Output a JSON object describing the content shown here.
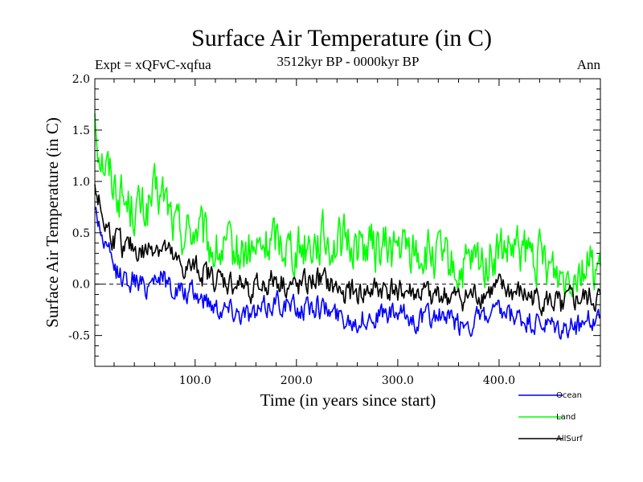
{
  "chart_data": {
    "type": "line",
    "title": "Surface Air Temperature (in C)",
    "subtitle": "3512kyr BP - 0000kyr BP",
    "experiment": "Expt = xQFvC-xqfua",
    "season": "Ann",
    "xlabel": "Time (in years since start)",
    "ylabel": "Surface Air Temperature (in C)",
    "xlim": [
      1,
      500
    ],
    "ylim": [
      -0.8,
      2.0
    ],
    "xticks": [
      100,
      200,
      300,
      400
    ],
    "xtick_labels": [
      "100.0",
      "200.0",
      "300.0",
      "400.0"
    ],
    "yticks": [
      -0.5,
      0.0,
      0.5,
      1.0,
      1.5,
      2.0
    ],
    "ytick_labels": [
      "-0.5",
      "0.0",
      "0.5",
      "1.0",
      "1.5",
      "2.0"
    ],
    "reference_line": 0.0,
    "legend_position": "bottom-right",
    "series": [
      {
        "name": "Ocean",
        "color": "#0000ff",
        "x": [
          1,
          5,
          10,
          20,
          30,
          40,
          50,
          60,
          70,
          80,
          90,
          100,
          120,
          140,
          160,
          180,
          200,
          220,
          240,
          260,
          280,
          300,
          320,
          340,
          360,
          380,
          400,
          420,
          440,
          460,
          480,
          500
        ],
        "values": [
          0.75,
          0.6,
          0.4,
          0.15,
          0.05,
          0.05,
          -0.05,
          0.1,
          0.05,
          -0.05,
          -0.1,
          -0.1,
          -0.2,
          -0.25,
          -0.3,
          -0.15,
          -0.25,
          -0.2,
          -0.3,
          -0.35,
          -0.3,
          -0.3,
          -0.35,
          -0.3,
          -0.4,
          -0.35,
          -0.3,
          -0.35,
          -0.4,
          -0.45,
          -0.4,
          -0.3
        ]
      },
      {
        "name": "Land",
        "color": "#00ff00",
        "x": [
          1,
          5,
          10,
          20,
          30,
          40,
          50,
          60,
          70,
          80,
          90,
          100,
          120,
          140,
          160,
          180,
          200,
          220,
          240,
          260,
          280,
          300,
          320,
          340,
          360,
          380,
          400,
          420,
          440,
          460,
          480,
          500
        ],
        "values": [
          1.7,
          1.35,
          1.2,
          1.0,
          0.8,
          0.75,
          0.7,
          0.85,
          0.85,
          0.55,
          0.5,
          0.55,
          0.3,
          0.3,
          0.3,
          0.45,
          0.35,
          0.45,
          0.4,
          0.4,
          0.35,
          0.35,
          0.3,
          0.25,
          0.1,
          0.2,
          0.3,
          0.3,
          0.25,
          0.1,
          0.2,
          0.15
        ]
      },
      {
        "name": "AllSurf",
        "color": "#000000",
        "x": [
          1,
          5,
          10,
          20,
          30,
          40,
          50,
          60,
          70,
          80,
          90,
          100,
          120,
          140,
          160,
          180,
          200,
          220,
          240,
          260,
          280,
          300,
          320,
          340,
          360,
          380,
          400,
          420,
          440,
          460,
          480,
          500
        ],
        "values": [
          1.0,
          0.8,
          0.6,
          0.45,
          0.35,
          0.35,
          0.3,
          0.4,
          0.35,
          0.2,
          0.15,
          0.15,
          0.05,
          0.0,
          -0.05,
          0.05,
          -0.05,
          0.05,
          -0.05,
          -0.1,
          -0.05,
          -0.05,
          -0.1,
          -0.1,
          -0.15,
          -0.1,
          -0.05,
          -0.1,
          -0.15,
          -0.2,
          -0.15,
          -0.15
        ]
      }
    ]
  }
}
